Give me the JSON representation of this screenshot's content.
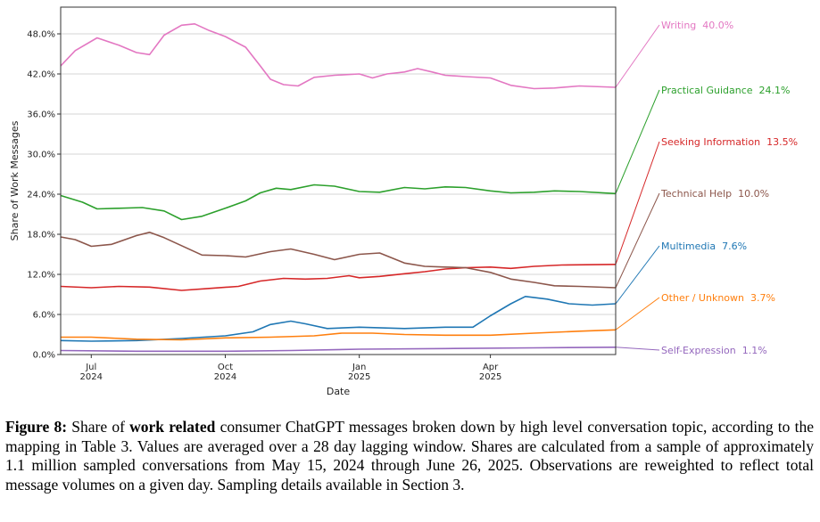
{
  "caption": {
    "label": "Figure 8:",
    "text_before": "Share of",
    "bold": "work related",
    "text_after": "consumer ChatGPT messages broken down by high level conversation topic, according to the mapping in Table 3. Values are averaged over a 28 day lagging window. Shares are calculated from a sample of approximately 1.1 million sampled conversations from May 15, 2024 through June 26, 2025. Observations are reweighted to reflect total message volumes on a given day. Sampling details available in Section 3."
  },
  "chart_data": {
    "type": "line",
    "title": "",
    "xlabel": "Date",
    "ylabel": "Share of Work Messages",
    "x_range": [
      "2024-06-10",
      "2025-06-26"
    ],
    "ylim": [
      0.0,
      52.0
    ],
    "y_ticks": [
      "0.0%",
      "6.0%",
      "12.0%",
      "18.0%",
      "24.0%",
      "30.0%",
      "36.0%",
      "42.0%",
      "48.0%"
    ],
    "x_ticks": [
      {
        "date": "2024-07-01",
        "month": "Jul",
        "year": "2024"
      },
      {
        "date": "2024-10-01",
        "month": "Oct",
        "year": "2024"
      },
      {
        "date": "2025-01-01",
        "month": "Jan",
        "year": "2025"
      },
      {
        "date": "2025-04-01",
        "month": "Apr",
        "year": "2025"
      }
    ],
    "grid": "horizontal",
    "series": [
      {
        "name": "Writing",
        "final_label": "40.0%",
        "color": "#e377c2",
        "points": [
          [
            "2024-06-10",
            43.2
          ],
          [
            "2024-06-20",
            45.5
          ],
          [
            "2024-07-05",
            47.4
          ],
          [
            "2024-07-20",
            46.3
          ],
          [
            "2024-08-01",
            45.2
          ],
          [
            "2024-08-10",
            44.9
          ],
          [
            "2024-08-20",
            47.8
          ],
          [
            "2024-09-01",
            49.3
          ],
          [
            "2024-09-10",
            49.5
          ],
          [
            "2024-09-20",
            48.5
          ],
          [
            "2024-10-01",
            47.6
          ],
          [
            "2024-10-15",
            46.0
          ],
          [
            "2024-10-25",
            43.2
          ],
          [
            "2024-11-01",
            41.2
          ],
          [
            "2024-11-10",
            40.4
          ],
          [
            "2024-11-20",
            40.2
          ],
          [
            "2024-12-01",
            41.5
          ],
          [
            "2024-12-15",
            41.8
          ],
          [
            "2025-01-01",
            42.0
          ],
          [
            "2025-01-10",
            41.4
          ],
          [
            "2025-01-20",
            42.0
          ],
          [
            "2025-02-01",
            42.3
          ],
          [
            "2025-02-10",
            42.8
          ],
          [
            "2025-02-20",
            42.3
          ],
          [
            "2025-03-01",
            41.8
          ],
          [
            "2025-03-15",
            41.6
          ],
          [
            "2025-04-01",
            41.4
          ],
          [
            "2025-04-15",
            40.3
          ],
          [
            "2025-05-01",
            39.8
          ],
          [
            "2025-05-15",
            39.9
          ],
          [
            "2025-06-01",
            40.2
          ],
          [
            "2025-06-26",
            40.0
          ]
        ]
      },
      {
        "name": "Practical Guidance",
        "final_label": "24.1%",
        "color": "#2ca02c",
        "points": [
          [
            "2024-06-10",
            23.8
          ],
          [
            "2024-06-25",
            22.8
          ],
          [
            "2024-07-05",
            21.8
          ],
          [
            "2024-07-20",
            21.9
          ],
          [
            "2024-08-05",
            22.0
          ],
          [
            "2024-08-20",
            21.5
          ],
          [
            "2024-09-01",
            20.2
          ],
          [
            "2024-09-15",
            20.7
          ],
          [
            "2024-10-01",
            21.9
          ],
          [
            "2024-10-15",
            23.0
          ],
          [
            "2024-10-25",
            24.2
          ],
          [
            "2024-11-05",
            24.9
          ],
          [
            "2024-11-15",
            24.7
          ],
          [
            "2024-12-01",
            25.4
          ],
          [
            "2024-12-15",
            25.2
          ],
          [
            "2025-01-01",
            24.4
          ],
          [
            "2025-01-15",
            24.3
          ],
          [
            "2025-02-01",
            25.0
          ],
          [
            "2025-02-15",
            24.8
          ],
          [
            "2025-03-01",
            25.1
          ],
          [
            "2025-03-15",
            25.0
          ],
          [
            "2025-04-01",
            24.5
          ],
          [
            "2025-04-15",
            24.2
          ],
          [
            "2025-05-01",
            24.3
          ],
          [
            "2025-05-15",
            24.5
          ],
          [
            "2025-06-01",
            24.4
          ],
          [
            "2025-06-26",
            24.1
          ]
        ]
      },
      {
        "name": "Seeking Information",
        "final_label": "13.5%",
        "color": "#d62728",
        "points": [
          [
            "2024-06-10",
            10.2
          ],
          [
            "2024-07-01",
            10.0
          ],
          [
            "2024-07-20",
            10.2
          ],
          [
            "2024-08-10",
            10.1
          ],
          [
            "2024-09-01",
            9.6
          ],
          [
            "2024-09-20",
            9.9
          ],
          [
            "2024-10-10",
            10.2
          ],
          [
            "2024-10-25",
            11.0
          ],
          [
            "2024-11-10",
            11.4
          ],
          [
            "2024-11-25",
            11.3
          ],
          [
            "2024-12-10",
            11.4
          ],
          [
            "2024-12-25",
            11.8
          ],
          [
            "2025-01-01",
            11.5
          ],
          [
            "2025-01-15",
            11.7
          ],
          [
            "2025-02-01",
            12.1
          ],
          [
            "2025-02-15",
            12.4
          ],
          [
            "2025-03-01",
            12.8
          ],
          [
            "2025-03-15",
            13.0
          ],
          [
            "2025-04-01",
            13.1
          ],
          [
            "2025-04-15",
            12.9
          ],
          [
            "2025-05-01",
            13.2
          ],
          [
            "2025-05-20",
            13.4
          ],
          [
            "2025-06-26",
            13.5
          ]
        ]
      },
      {
        "name": "Technical Help",
        "final_label": "10.0%",
        "color": "#8c564b",
        "points": [
          [
            "2024-06-10",
            17.6
          ],
          [
            "2024-06-20",
            17.2
          ],
          [
            "2024-07-01",
            16.2
          ],
          [
            "2024-07-15",
            16.5
          ],
          [
            "2024-08-01",
            17.8
          ],
          [
            "2024-08-10",
            18.3
          ],
          [
            "2024-08-20",
            17.5
          ],
          [
            "2024-09-01",
            16.3
          ],
          [
            "2024-09-15",
            14.9
          ],
          [
            "2024-10-01",
            14.8
          ],
          [
            "2024-10-15",
            14.6
          ],
          [
            "2024-11-01",
            15.4
          ],
          [
            "2024-11-15",
            15.8
          ],
          [
            "2024-12-01",
            15.0
          ],
          [
            "2024-12-15",
            14.2
          ],
          [
            "2025-01-01",
            15.0
          ],
          [
            "2025-01-15",
            15.2
          ],
          [
            "2025-02-01",
            13.7
          ],
          [
            "2025-02-15",
            13.2
          ],
          [
            "2025-03-01",
            13.1
          ],
          [
            "2025-03-15",
            13.0
          ],
          [
            "2025-04-01",
            12.3
          ],
          [
            "2025-04-15",
            11.3
          ],
          [
            "2025-05-01",
            10.8
          ],
          [
            "2025-05-15",
            10.3
          ],
          [
            "2025-06-01",
            10.2
          ],
          [
            "2025-06-26",
            10.0
          ]
        ]
      },
      {
        "name": "Multimedia",
        "final_label": "7.6%",
        "color": "#1f77b4",
        "points": [
          [
            "2024-06-10",
            2.1
          ],
          [
            "2024-07-01",
            2.0
          ],
          [
            "2024-08-01",
            2.1
          ],
          [
            "2024-09-01",
            2.4
          ],
          [
            "2024-10-01",
            2.8
          ],
          [
            "2024-10-20",
            3.4
          ],
          [
            "2024-11-01",
            4.5
          ],
          [
            "2024-11-15",
            5.0
          ],
          [
            "2024-11-25",
            4.6
          ],
          [
            "2024-12-10",
            3.9
          ],
          [
            "2025-01-01",
            4.1
          ],
          [
            "2025-02-01",
            3.9
          ],
          [
            "2025-03-01",
            4.1
          ],
          [
            "2025-03-20",
            4.1
          ],
          [
            "2025-04-01",
            5.8
          ],
          [
            "2025-04-15",
            7.6
          ],
          [
            "2025-04-25",
            8.7
          ],
          [
            "2025-05-10",
            8.3
          ],
          [
            "2025-05-25",
            7.6
          ],
          [
            "2025-06-10",
            7.4
          ],
          [
            "2025-06-26",
            7.6
          ]
        ]
      },
      {
        "name": "Other / Unknown",
        "final_label": "3.7%",
        "color": "#ff7f0e",
        "points": [
          [
            "2024-06-10",
            2.6
          ],
          [
            "2024-07-01",
            2.6
          ],
          [
            "2024-08-01",
            2.3
          ],
          [
            "2024-09-01",
            2.2
          ],
          [
            "2024-10-01",
            2.5
          ],
          [
            "2024-11-01",
            2.6
          ],
          [
            "2024-12-01",
            2.8
          ],
          [
            "2024-12-20",
            3.2
          ],
          [
            "2025-01-10",
            3.2
          ],
          [
            "2025-02-01",
            3.0
          ],
          [
            "2025-03-01",
            2.9
          ],
          [
            "2025-04-01",
            2.9
          ],
          [
            "2025-05-01",
            3.2
          ],
          [
            "2025-06-01",
            3.5
          ],
          [
            "2025-06-26",
            3.7
          ]
        ]
      },
      {
        "name": "Self-Expression",
        "final_label": "1.1%",
        "color": "#9467bd",
        "points": [
          [
            "2024-06-10",
            0.6
          ],
          [
            "2024-08-01",
            0.5
          ],
          [
            "2024-10-01",
            0.5
          ],
          [
            "2024-11-15",
            0.6
          ],
          [
            "2025-01-01",
            0.8
          ],
          [
            "2025-03-01",
            0.9
          ],
          [
            "2025-05-01",
            1.0
          ],
          [
            "2025-06-26",
            1.1
          ]
        ]
      }
    ]
  }
}
